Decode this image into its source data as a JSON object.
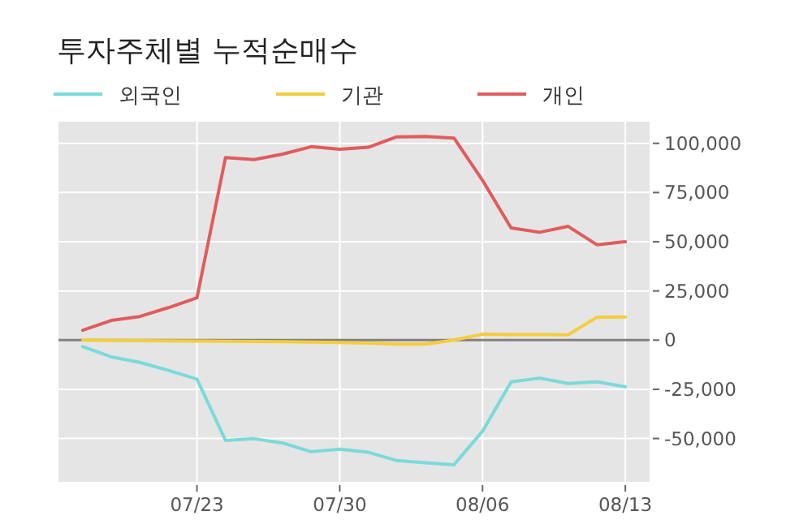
{
  "chart_data": {
    "type": "line",
    "title": "투자주체별 누적순매수",
    "categories": [
      null,
      null,
      null,
      null,
      "07/23",
      null,
      null,
      null,
      null,
      "07/30",
      null,
      null,
      null,
      null,
      "08/06",
      null,
      null,
      null,
      null,
      "08/13"
    ],
    "series": [
      {
        "name": "외국인",
        "color": "#7adada",
        "values": [
          -3300,
          -8500,
          -11300,
          -15400,
          -19800,
          -51000,
          -50100,
          -52300,
          -56700,
          -55400,
          -57000,
          -61200,
          -62300,
          -63300,
          -46300,
          -21200,
          -19300,
          -22000,
          -21200,
          -23700
        ]
      },
      {
        "name": "기관",
        "color": "#f5cc3c",
        "values": [
          0,
          -200,
          -300,
          -400,
          -500,
          -600,
          -700,
          -800,
          -1000,
          -1200,
          -1500,
          -2000,
          -2000,
          0,
          3000,
          2800,
          2800,
          2700,
          11600,
          11800
        ]
      },
      {
        "name": "개인",
        "color": "#e05c5c",
        "values": [
          5000,
          10000,
          12000,
          16500,
          21500,
          92800,
          91700,
          94500,
          98300,
          97000,
          98000,
          103300,
          103500,
          102700,
          81200,
          57000,
          54800,
          57800,
          48500,
          50000
        ]
      }
    ],
    "ylim": [
      -72000,
      111000
    ],
    "yticks": [
      {
        "value": -50000,
        "label": "-50,000"
      },
      {
        "value": -25000,
        "label": "-25,000"
      },
      0,
      {
        "value": 25000,
        "label": "25,000"
      },
      {
        "value": 50000,
        "label": "50,000"
      },
      {
        "value": 75000,
        "label": "75,000"
      },
      {
        "value": 100000,
        "label": "100,000"
      }
    ],
    "ref_lines": [
      {
        "axis": "y",
        "value": 0,
        "color": "#808080"
      }
    ],
    "grid": true,
    "legend": "top left"
  }
}
